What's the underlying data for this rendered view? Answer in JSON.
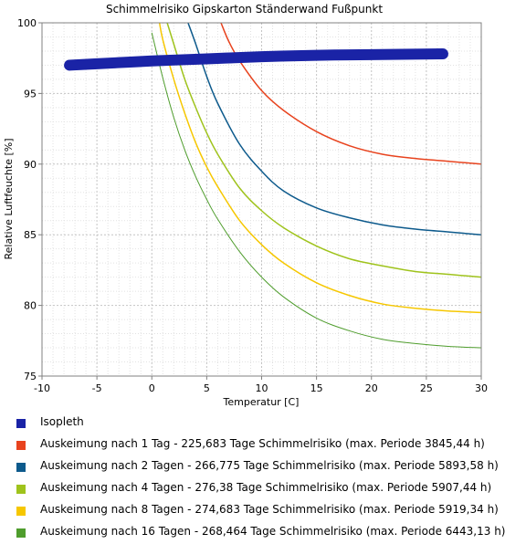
{
  "chart_data": {
    "type": "line",
    "title": "Schimmelrisiko Gipskarton Ständerwand Fußpunkt",
    "xlabel": "Temperatur [C]",
    "ylabel": "Relative Luftfeuchte [%]",
    "xlim": [
      -10,
      30
    ],
    "ylim": [
      75,
      100
    ],
    "xticks": [
      "-10",
      "-5",
      "0",
      "5",
      "10",
      "15",
      "20",
      "25",
      "30"
    ],
    "yticks": [
      "75",
      "80",
      "85",
      "90",
      "95",
      "100"
    ],
    "grid": true,
    "legend_position": "bottom",
    "isopleth": {
      "name": "Isopleth",
      "color": "#1a23a6",
      "points": [
        {
          "x": -7.5,
          "y": 97.0
        },
        {
          "x": -5,
          "y": 97.1
        },
        {
          "x": 0,
          "y": 97.3
        },
        {
          "x": 5,
          "y": 97.45
        },
        {
          "x": 10,
          "y": 97.6
        },
        {
          "x": 15,
          "y": 97.7
        },
        {
          "x": 20,
          "y": 97.75
        },
        {
          "x": 26.5,
          "y": 97.8
        }
      ]
    },
    "series": [
      {
        "name": "Auskeimung nach 1 Tag - 225,683 Tage Schimmelrisiko (max. Periode 3845,44 h)",
        "color": "#e8431e",
        "x": [
          6.3,
          7,
          8,
          10,
          12,
          15,
          18,
          21,
          24,
          27,
          30
        ],
        "y": [
          100,
          98.7,
          97.3,
          95.2,
          93.8,
          92.3,
          91.3,
          90.7,
          90.4,
          90.2,
          90.0
        ]
      },
      {
        "name": "Auskeimung nach 2 Tagen - 266,775 Tage Schimmelrisiko (max. Periode 5893,58 h)",
        "color": "#0d5a8c",
        "x": [
          3.3,
          4,
          5,
          6,
          8,
          10,
          12,
          15,
          18,
          21,
          24,
          27,
          30
        ],
        "y": [
          100,
          98.5,
          96.2,
          94.3,
          91.4,
          89.5,
          88.1,
          86.9,
          86.2,
          85.7,
          85.4,
          85.2,
          85.0
        ]
      },
      {
        "name": "Auskeimung nach 4 Tagen - 276,38 Tage Schimmelrisiko (max. Periode 5907,44 h)",
        "color": "#9fc31c",
        "x": [
          1.4,
          2,
          3,
          4,
          5,
          6,
          8,
          10,
          12,
          15,
          18,
          21,
          24,
          27,
          30
        ],
        "y": [
          100,
          98.5,
          96.0,
          94.0,
          92.2,
          90.7,
          88.3,
          86.7,
          85.5,
          84.2,
          83.3,
          82.8,
          82.4,
          82.2,
          82.0
        ]
      },
      {
        "name": "Auskeimung nach 8 Tagen - 274,683 Tage Schimmelrisiko (max. Periode 5919,34 h)",
        "color": "#f6c700",
        "x": [
          0.7,
          1,
          2,
          3,
          4,
          5,
          6,
          8,
          10,
          12,
          15,
          18,
          21,
          24,
          27,
          30
        ],
        "y": [
          100,
          98.8,
          96.0,
          93.6,
          91.5,
          89.8,
          88.4,
          86.0,
          84.3,
          83.0,
          81.6,
          80.7,
          80.1,
          79.8,
          79.6,
          79.5
        ]
      },
      {
        "name": "Auskeimung nach 16 Tagen - 268,464 Tage Schimmelrisiko (max. Periode 6443,13 h)",
        "color": "#4f9d2d",
        "x": [
          0,
          1,
          2,
          3,
          4,
          5,
          6,
          8,
          10,
          12,
          15,
          18,
          21,
          24,
          27,
          30
        ],
        "y": [
          99.3,
          96.1,
          93.3,
          91.0,
          89.1,
          87.5,
          86.1,
          83.8,
          82.0,
          80.6,
          79.1,
          78.2,
          77.6,
          77.3,
          77.1,
          77.0
        ]
      }
    ]
  }
}
